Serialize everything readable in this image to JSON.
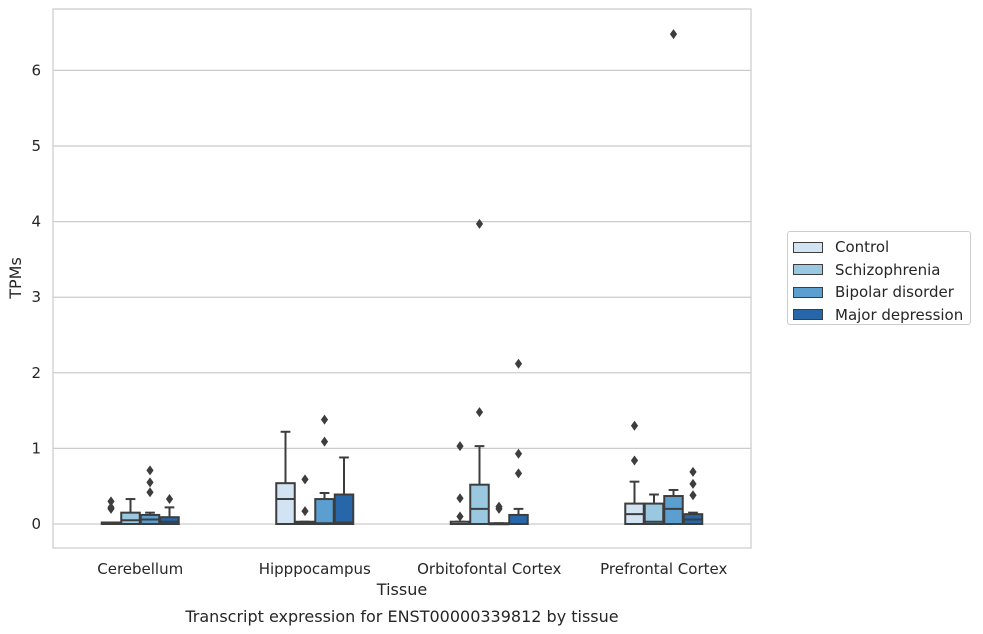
{
  "chart_data": {
    "type": "box",
    "title": "Transcript expression for ENST00000339812 by tissue",
    "xlabel": "Tissue",
    "ylabel": "TPMs",
    "ylim": [
      -0.32,
      6.85
    ],
    "yticks": [
      0,
      1,
      2,
      3,
      4,
      5,
      6
    ],
    "grid": true,
    "legend_position": "right",
    "categories": [
      "Cerebellum",
      "Hipppocampus",
      "Orbitofontal Cortex",
      "Prefrontal Cortex"
    ],
    "series": [
      {
        "name": "Control",
        "color": "#d2e3f3",
        "boxes": [
          {
            "q1": 0,
            "median": 0,
            "q3": 0.02,
            "whislo": 0,
            "whishi": 0.02,
            "fliers": [
              0.2,
              0.22,
              0.3
            ]
          },
          {
            "q1": 0,
            "median": 0.33,
            "q3": 0.54,
            "whislo": 0,
            "whishi": 1.22,
            "fliers": []
          },
          {
            "q1": 0,
            "median": 0,
            "q3": 0.03,
            "whislo": 0,
            "whishi": 0.03,
            "fliers": [
              0.1,
              0.34,
              1.03
            ]
          },
          {
            "q1": 0,
            "median": 0.13,
            "q3": 0.27,
            "whislo": 0,
            "whishi": 0.56,
            "fliers": [
              0.84,
              1.3
            ]
          }
        ]
      },
      {
        "name": "Schizophrenia",
        "color": "#9ac8e0",
        "boxes": [
          {
            "q1": 0,
            "median": 0.05,
            "q3": 0.15,
            "whislo": 0,
            "whishi": 0.33,
            "fliers": []
          },
          {
            "q1": 0,
            "median": 0.01,
            "q3": 0.03,
            "whislo": 0,
            "whishi": 0.03,
            "fliers": [
              0.17,
              0.59
            ]
          },
          {
            "q1": 0,
            "median": 0.2,
            "q3": 0.52,
            "whislo": 0,
            "whishi": 1.03,
            "fliers": [
              1.48,
              3.97
            ]
          },
          {
            "q1": 0,
            "median": 0.03,
            "q3": 0.27,
            "whislo": 0,
            "whishi": 0.39,
            "fliers": []
          }
        ]
      },
      {
        "name": "Bipolar disorder",
        "color": "#5a9fcf",
        "boxes": [
          {
            "q1": 0,
            "median": 0.06,
            "q3": 0.12,
            "whislo": 0,
            "whishi": 0.15,
            "fliers": [
              0.42,
              0.55,
              0.71
            ]
          },
          {
            "q1": 0,
            "median": 0.01,
            "q3": 0.33,
            "whislo": 0,
            "whishi": 0.41,
            "fliers": [
              1.09,
              1.38
            ]
          },
          {
            "q1": 0,
            "median": 0,
            "q3": 0.01,
            "whislo": 0,
            "whishi": 0.01,
            "fliers": [
              0.2,
              0.23
            ]
          },
          {
            "q1": 0,
            "median": 0.2,
            "q3": 0.37,
            "whislo": 0,
            "whishi": 0.45,
            "fliers": [
              6.48
            ]
          }
        ]
      },
      {
        "name": "Major depression",
        "color": "#2767a9",
        "boxes": [
          {
            "q1": 0,
            "median": 0.03,
            "q3": 0.09,
            "whislo": 0,
            "whishi": 0.22,
            "fliers": [
              0.33
            ]
          },
          {
            "q1": 0,
            "median": 0.02,
            "q3": 0.39,
            "whislo": 0,
            "whishi": 0.88,
            "fliers": []
          },
          {
            "q1": 0,
            "median": 0,
            "q3": 0.12,
            "whislo": 0,
            "whishi": 0.2,
            "fliers": [
              0.67,
              0.93,
              2.12
            ]
          },
          {
            "q1": 0,
            "median": 0.06,
            "q3": 0.13,
            "whislo": 0,
            "whishi": 0.15,
            "fliers": [
              0.38,
              0.53,
              0.69
            ]
          }
        ]
      }
    ]
  }
}
